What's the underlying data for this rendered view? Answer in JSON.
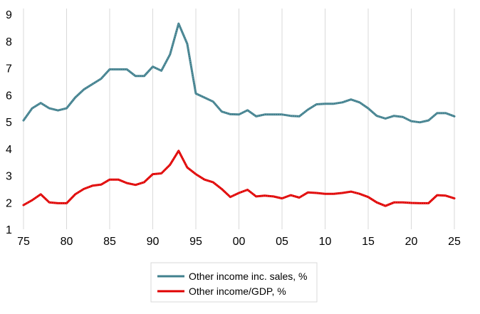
{
  "chart_data": {
    "type": "line",
    "title": "",
    "xlabel": "",
    "ylabel": "",
    "xlim": [
      1975,
      2025
    ],
    "ylim": [
      1,
      9
    ],
    "grid": "vertical",
    "legend_position": "bottom",
    "x_tick_labels": [
      "75",
      "80",
      "85",
      "90",
      "95",
      "00",
      "05",
      "10",
      "15",
      "20",
      "25"
    ],
    "x_tick_values": [
      1975,
      1980,
      1985,
      1990,
      1995,
      2000,
      2005,
      2010,
      2015,
      2020,
      2025
    ],
    "y_ticks": [
      1,
      2,
      3,
      4,
      5,
      6,
      7,
      8,
      9
    ],
    "series": [
      {
        "name": "Other income inc. sales, %",
        "color": "#41808e",
        "points": [
          [
            1975,
            5.05
          ],
          [
            1976,
            5.5
          ],
          [
            1977,
            5.7
          ],
          [
            1978,
            5.5
          ],
          [
            1979,
            5.42
          ],
          [
            1980,
            5.5
          ],
          [
            1981,
            5.9
          ],
          [
            1982,
            6.2
          ],
          [
            1983,
            6.4
          ],
          [
            1984,
            6.6
          ],
          [
            1985,
            6.95
          ],
          [
            1986,
            6.95
          ],
          [
            1987,
            6.95
          ],
          [
            1988,
            6.7
          ],
          [
            1989,
            6.7
          ],
          [
            1990,
            7.05
          ],
          [
            1991,
            6.9
          ],
          [
            1992,
            7.5
          ],
          [
            1993,
            8.65
          ],
          [
            1994,
            7.9
          ],
          [
            1995,
            6.05
          ],
          [
            1996,
            5.9
          ],
          [
            1997,
            5.75
          ],
          [
            1998,
            5.38
          ],
          [
            1999,
            5.28
          ],
          [
            2000,
            5.27
          ],
          [
            2001,
            5.43
          ],
          [
            2002,
            5.2
          ],
          [
            2003,
            5.27
          ],
          [
            2004,
            5.27
          ],
          [
            2005,
            5.27
          ],
          [
            2006,
            5.22
          ],
          [
            2007,
            5.2
          ],
          [
            2008,
            5.45
          ],
          [
            2009,
            5.65
          ],
          [
            2010,
            5.67
          ],
          [
            2011,
            5.67
          ],
          [
            2012,
            5.72
          ],
          [
            2013,
            5.83
          ],
          [
            2014,
            5.72
          ],
          [
            2015,
            5.5
          ],
          [
            2016,
            5.22
          ],
          [
            2017,
            5.12
          ],
          [
            2018,
            5.22
          ],
          [
            2019,
            5.18
          ],
          [
            2020,
            5.02
          ],
          [
            2021,
            4.98
          ],
          [
            2022,
            5.05
          ],
          [
            2023,
            5.32
          ],
          [
            2024,
            5.32
          ],
          [
            2025,
            5.2
          ]
        ]
      },
      {
        "name": "Other income/GDP, %",
        "color": "#e00000",
        "points": [
          [
            1975,
            1.9
          ],
          [
            1976,
            2.08
          ],
          [
            1977,
            2.3
          ],
          [
            1978,
            2.0
          ],
          [
            1979,
            1.97
          ],
          [
            1980,
            1.97
          ],
          [
            1981,
            2.3
          ],
          [
            1982,
            2.5
          ],
          [
            1983,
            2.62
          ],
          [
            1984,
            2.66
          ],
          [
            1985,
            2.85
          ],
          [
            1986,
            2.85
          ],
          [
            1987,
            2.72
          ],
          [
            1988,
            2.65
          ],
          [
            1989,
            2.75
          ],
          [
            1990,
            3.05
          ],
          [
            1991,
            3.08
          ],
          [
            1992,
            3.4
          ],
          [
            1993,
            3.92
          ],
          [
            1994,
            3.3
          ],
          [
            1995,
            3.05
          ],
          [
            1996,
            2.85
          ],
          [
            1997,
            2.75
          ],
          [
            1998,
            2.5
          ],
          [
            1999,
            2.2
          ],
          [
            2000,
            2.35
          ],
          [
            2001,
            2.47
          ],
          [
            2002,
            2.22
          ],
          [
            2003,
            2.25
          ],
          [
            2004,
            2.22
          ],
          [
            2005,
            2.15
          ],
          [
            2006,
            2.27
          ],
          [
            2007,
            2.18
          ],
          [
            2008,
            2.37
          ],
          [
            2009,
            2.35
          ],
          [
            2010,
            2.32
          ],
          [
            2011,
            2.32
          ],
          [
            2012,
            2.35
          ],
          [
            2013,
            2.4
          ],
          [
            2014,
            2.32
          ],
          [
            2015,
            2.2
          ],
          [
            2016,
            2.0
          ],
          [
            2017,
            1.87
          ],
          [
            2018,
            2.0
          ],
          [
            2019,
            2.0
          ],
          [
            2020,
            1.98
          ],
          [
            2021,
            1.97
          ],
          [
            2022,
            1.97
          ],
          [
            2023,
            2.27
          ],
          [
            2024,
            2.25
          ],
          [
            2025,
            2.15
          ]
        ]
      }
    ]
  }
}
